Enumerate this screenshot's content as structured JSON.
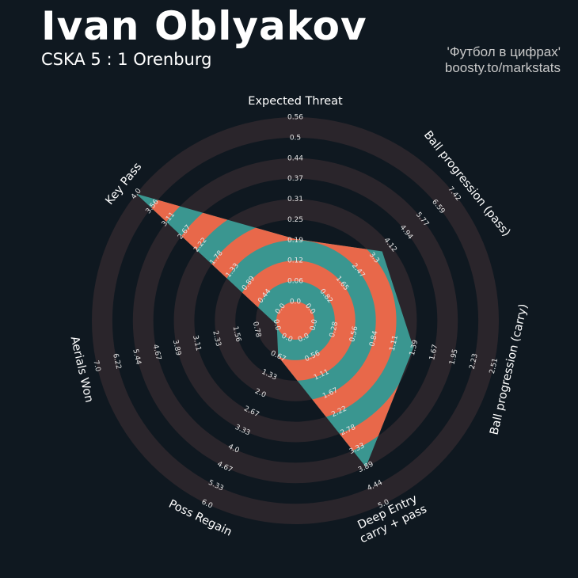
{
  "header": {
    "title": "Ivan Oblyakov",
    "subtitle": "CSKA 5 : 1 Orenburg",
    "credit_line1": "'Футбол в цифрах'",
    "credit_line2": "boosty.to/markstats"
  },
  "colors": {
    "background": "#0f1820",
    "ring": "#2a252b",
    "player_fill": "#3a9690",
    "band": "#e8684a",
    "label": "#ffffff",
    "tick": "#e6e6e6"
  },
  "chart_data": {
    "type": "radar",
    "params": [
      {
        "label": "Expected Threat",
        "range": [
          0,
          0.56
        ],
        "value": 0.19,
        "ticks": [
          "0.0",
          "0.06",
          "0.12",
          "0.19",
          "0.25",
          "0.31",
          "0.37",
          "0.44",
          "0.5",
          "0.56"
        ]
      },
      {
        "label": "Ball progression (pass)",
        "range": [
          0,
          8.25
        ],
        "value": 4.12,
        "ticks": [
          "0.0",
          "0.82",
          "1.65",
          "2.47",
          "3.3",
          "4.12",
          "4.94",
          "5.77",
          "6.59",
          "7.42"
        ]
      },
      {
        "label": "Ball progression (carry)",
        "range": [
          0,
          2.51
        ],
        "value": 1.39,
        "ticks": [
          "0.0",
          "0.28",
          "0.56",
          "0.84",
          "1.11",
          "1.39",
          "1.67",
          "1.95",
          "2.23",
          "2.51"
        ]
      },
      {
        "label": "Deep Entry\ncarry + pass",
        "range": [
          0,
          5.0
        ],
        "value": 3.89,
        "ticks": [
          "0.0",
          "0.56",
          "1.11",
          "1.67",
          "2.22",
          "2.78",
          "3.33",
          "3.89",
          "4.44",
          "5.0"
        ]
      },
      {
        "label": "Poss Regain",
        "range": [
          0,
          6.0
        ],
        "value": 0.67,
        "ticks": [
          "0.0",
          "0.67",
          "1.33",
          "2.0",
          "2.67",
          "3.33",
          "4.0",
          "4.67",
          "5.33",
          "6.0"
        ]
      },
      {
        "label": "Aerials Won",
        "range": [
          0,
          7.0
        ],
        "value": 0.0,
        "ticks": [
          "0.0",
          "0.78",
          "1.56",
          "2.33",
          "3.11",
          "3.89",
          "4.67",
          "5.44",
          "6.22",
          "7.0"
        ]
      },
      {
        "label": "Key Pass",
        "range": [
          0,
          4.0
        ],
        "value": 4.0,
        "ticks": [
          "0.0",
          "0.44",
          "0.89",
          "1.33",
          "1.78",
          "2.22",
          "2.67",
          "3.11",
          "3.56",
          "4.0"
        ]
      }
    ]
  }
}
